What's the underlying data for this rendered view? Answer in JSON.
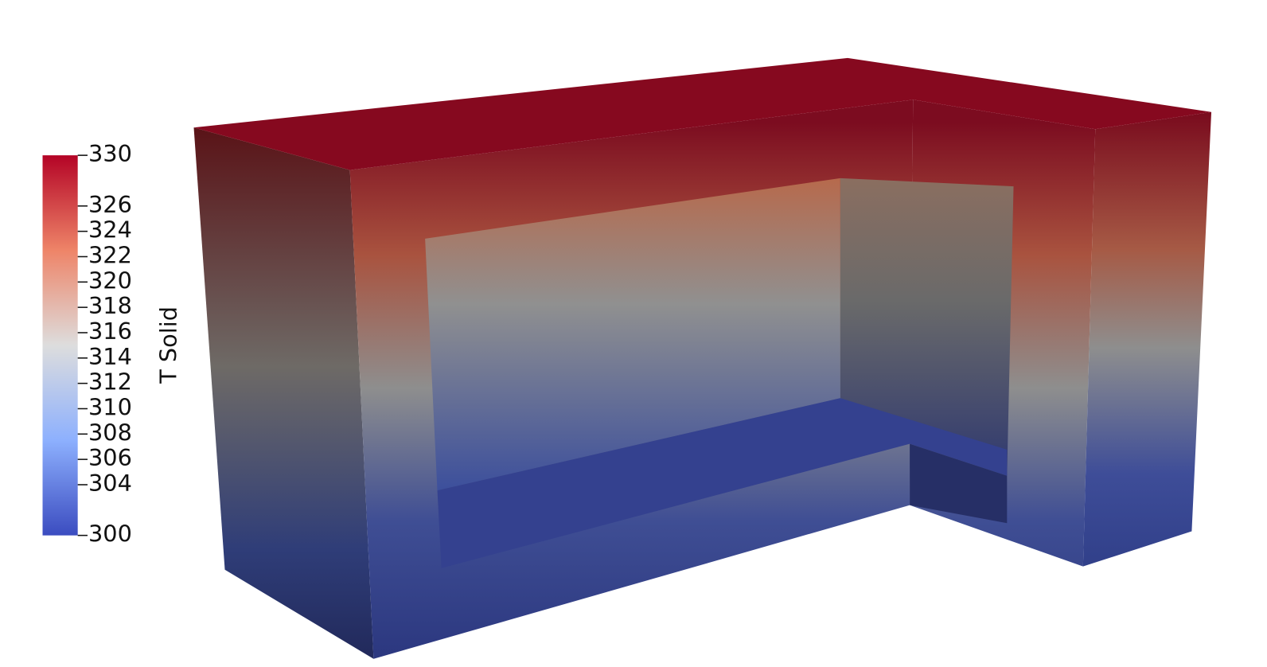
{
  "colorbar": {
    "title": "T Solid",
    "range": [
      300,
      330
    ],
    "ticks": [
      300,
      304,
      306,
      308,
      310,
      312,
      314,
      316,
      318,
      320,
      322,
      324,
      326,
      330
    ]
  }
}
